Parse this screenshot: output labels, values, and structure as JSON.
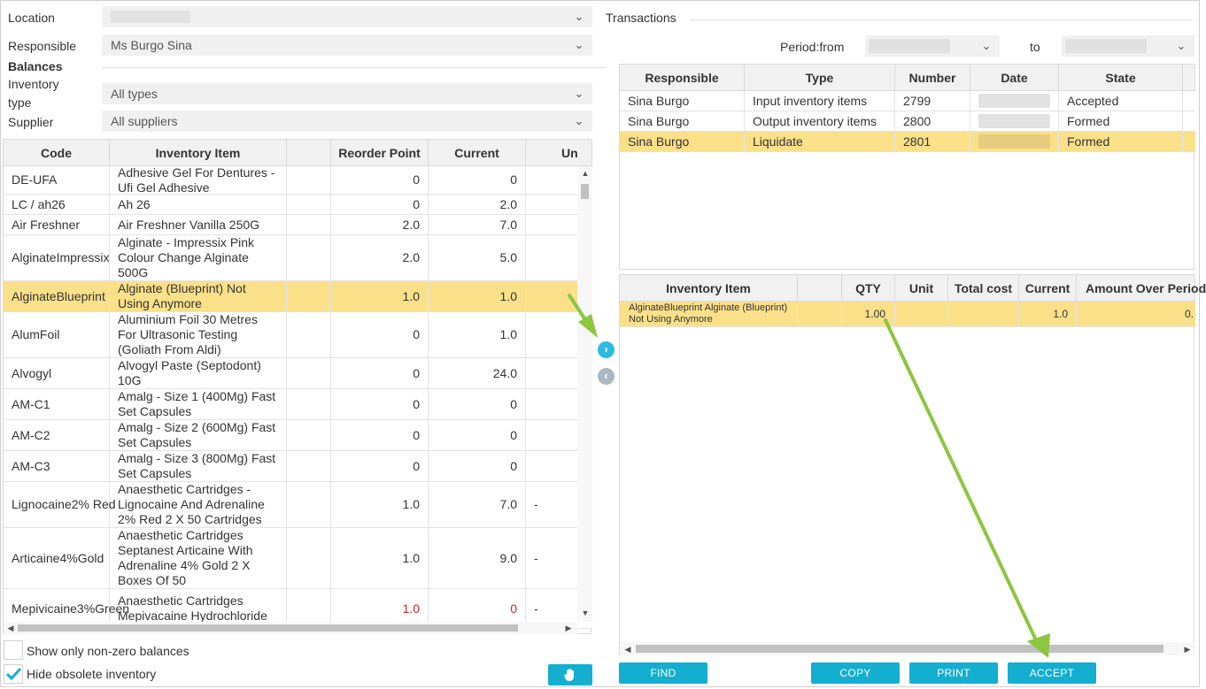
{
  "filters": {
    "location_label": "Location",
    "responsible_label": "Responsible",
    "responsible_value": "Ms Burgo Sina",
    "balances_heading": "Balances",
    "inventory_type_label": "Inventory type",
    "inventory_type_value": "All types",
    "supplier_label": "Supplier",
    "supplier_value": "All suppliers"
  },
  "balances": {
    "columns": [
      "Code",
      "Inventory Item",
      "",
      "Reorder Point",
      "Current",
      "Un"
    ],
    "rows": [
      {
        "code": "DE-UFA",
        "item": "Adhesive Gel For Dentures - Ufi Gel Adhesive",
        "reorder": "0",
        "current": "0",
        "unit": ""
      },
      {
        "code": "LC / ah26",
        "item": "Ah 26",
        "reorder": "0",
        "current": "2.0",
        "unit": ""
      },
      {
        "code": "Air Freshner",
        "item": "Air Freshner Vanilla 250G",
        "reorder": "2.0",
        "current": "7.0",
        "unit": ""
      },
      {
        "code": "AlginateImpressix",
        "item": "Alginate - Impressix Pink Colour Change Alginate 500G",
        "reorder": "2.0",
        "current": "5.0",
        "unit": ""
      },
      {
        "code": "AlginateBlueprint",
        "item": "Alginate (Blueprint) Not Using Anymore",
        "reorder": "1.0",
        "current": "1.0",
        "unit": ""
      },
      {
        "code": "AlumFoil",
        "item": "Aluminium Foil 30 Metres For Ultrasonic Testing (Goliath From Aldi)",
        "reorder": "0",
        "current": "1.0",
        "unit": ""
      },
      {
        "code": "Alvogyl",
        "item": "Alvogyl Paste (Septodont) 10G",
        "reorder": "0",
        "current": "24.0",
        "unit": ""
      },
      {
        "code": "AM-C1",
        "item": "Amalg - Size 1 (400Mg) Fast Set Capsules",
        "reorder": "0",
        "current": "0",
        "unit": ""
      },
      {
        "code": "AM-C2",
        "item": "Amalg - Size 2 (600Mg) Fast Set Capsules",
        "reorder": "0",
        "current": "0",
        "unit": ""
      },
      {
        "code": "AM-C3",
        "item": "Amalg - Size 3 (800Mg) Fast Set Capsules",
        "reorder": "0",
        "current": "0",
        "unit": ""
      },
      {
        "code": "Lignocaine2% Red",
        "item": "Anaesthetic Cartridges - Lignocaine And Adrenaline 2% Red 2 X 50 Cartridges",
        "reorder": "1.0",
        "current": "7.0",
        "unit": "-"
      },
      {
        "code": "Articaine4%Gold",
        "item": "Anaesthetic Cartridges Septanest Articaine With Adrenaline 4% Gold 2 X Boxes Of 50",
        "reorder": "1.0",
        "current": "9.0",
        "unit": "-"
      },
      {
        "code": "Mepivicaine3%Green",
        "item": "Anaesthetic Cartridges Mepivacaine Hydrochloride",
        "reorder": "1.0",
        "current": "0",
        "unit": "-"
      }
    ]
  },
  "options": {
    "nonzero_label": "Show only non-zero balances",
    "obsolete_label": "Hide obsolete inventory"
  },
  "transactions": {
    "title": "Transactions",
    "period_from_label": "Period:from",
    "to_label": "to",
    "columns": [
      "Responsible",
      "Type",
      "Number",
      "Date",
      "State"
    ],
    "rows": [
      {
        "responsible": "Sina Burgo",
        "type": "Input inventory items",
        "number": "2799",
        "state": "Accepted"
      },
      {
        "responsible": "Sina Burgo",
        "type": "Output inventory items",
        "number": "2800",
        "state": "Formed"
      },
      {
        "responsible": "Sina Burgo",
        "type": "Liquidate",
        "number": "2801",
        "state": "Formed"
      }
    ]
  },
  "details": {
    "columns": [
      "Inventory Item",
      "",
      "QTY",
      "Unit",
      "Total cost",
      "Current",
      "Amount Over Period"
    ],
    "rows": [
      {
        "item": "AlginateBlueprint Alginate (Blueprint) Not Using Anymore",
        "qty": "1.00",
        "unit": "",
        "total": "",
        "current": "1.0",
        "amount": "0."
      }
    ]
  },
  "buttons": {
    "find": "FIND",
    "copy": "COPY",
    "print": "PRINT",
    "accept": "ACCEPT"
  },
  "icons": {
    "move_right": "chevron-right-icon",
    "move_left": "chevron-left-icon",
    "hand": "hand-icon",
    "check": "check-icon"
  },
  "colors": {
    "accent": "#13aed0",
    "highlight": "#fbe08a",
    "negative": "#e02020",
    "arrow": "#8dc63f"
  }
}
